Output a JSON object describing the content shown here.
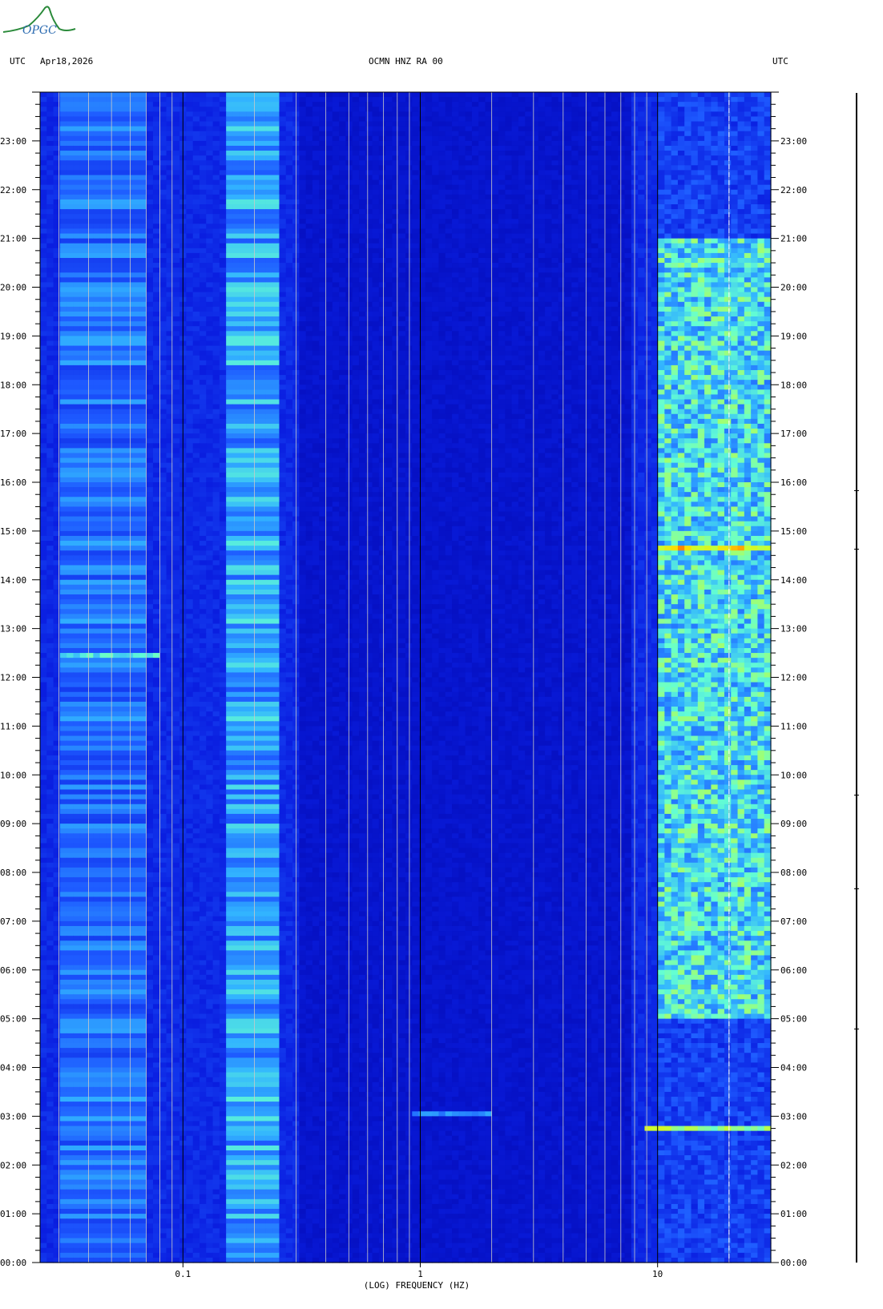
{
  "header": {
    "utc_left": "UTC",
    "date": "Apr18,2026",
    "title": "OCMN HNZ RA 00",
    "utc_right": "UTC"
  },
  "logo": {
    "text": "OPGC"
  },
  "chart_data": {
    "type": "heatmap",
    "title": "OCMN HNZ RA 00",
    "xlabel": "(LOG) FREQUENCY (HZ)",
    "xscale": "log",
    "xlim": [
      0.025,
      30
    ],
    "x_ticks": [
      {
        "value": 0.1,
        "label": "0.1"
      },
      {
        "value": 1,
        "label": "1"
      },
      {
        "value": 10,
        "label": "10"
      }
    ],
    "ylabel": "UTC",
    "ylim_hours": [
      0,
      24
    ],
    "y_ticks": [
      "00:00",
      "01:00",
      "02:00",
      "03:00",
      "04:00",
      "05:00",
      "06:00",
      "07:00",
      "08:00",
      "09:00",
      "10:00",
      "11:00",
      "12:00",
      "13:00",
      "14:00",
      "15:00",
      "16:00",
      "17:00",
      "18:00",
      "19:00",
      "20:00",
      "21:00",
      "22:00",
      "23:00"
    ],
    "colormap": [
      "#0000a0",
      "#0a1ee0",
      "#1e5aff",
      "#32b4ff",
      "#64ffd2",
      "#c8ff32",
      "#ffdc00",
      "#ff0000"
    ],
    "noise_bands": [
      {
        "f_min": 0.03,
        "f_max": 0.07,
        "intensity": 0.35
      },
      {
        "f_min": 0.15,
        "f_max": 0.25,
        "intensity": 0.45
      },
      {
        "f_min": 10,
        "f_max": 30,
        "intensity": 0.6
      }
    ],
    "events": [
      {
        "hour": 14.65,
        "f_min": 10,
        "f_max": 30,
        "intensity": 0.85
      },
      {
        "hour": 2.78,
        "f_min": 9,
        "f_max": 30,
        "intensity": 0.7
      },
      {
        "hour": 12.45,
        "f_min": 0.03,
        "f_max": 0.08,
        "intensity": 0.55
      },
      {
        "hour": 3.05,
        "f_min": 0.9,
        "f_max": 2,
        "intensity": 0.4
      }
    ]
  }
}
